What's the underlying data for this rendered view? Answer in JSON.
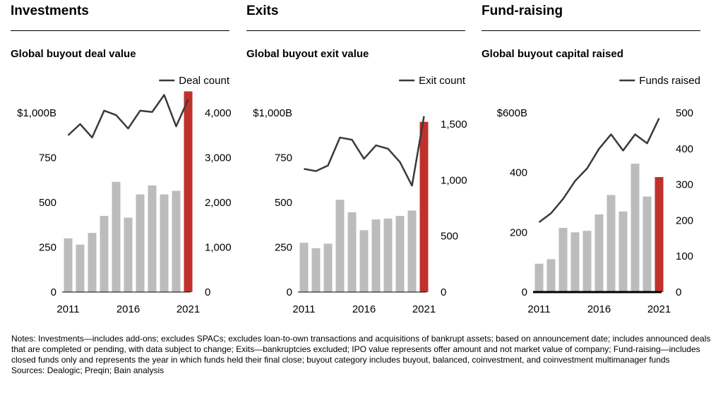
{
  "sections": [
    {
      "heading": "Investments",
      "subtitle": "Global buyout deal value",
      "legend": "Deal count"
    },
    {
      "heading": "Exits",
      "subtitle": "Global buyout exit value",
      "legend": "Exit count"
    },
    {
      "heading": "Fund-raising",
      "subtitle": "Global buyout capital raised",
      "legend": "Funds raised"
    }
  ],
  "colors": {
    "bar": "#bcbcbc",
    "highlight_bar": "#c0312b",
    "line": "#3a3a3a",
    "rule": "#000000"
  },
  "chart_data": [
    {
      "type": "bar",
      "title": "Global buyout deal value",
      "x": [
        2011,
        2012,
        2013,
        2014,
        2015,
        2016,
        2017,
        2018,
        2019,
        2020,
        2021
      ],
      "x_tick_labels": [
        "2011",
        "2016",
        "2021"
      ],
      "series": [
        {
          "type": "bar",
          "axis": "left",
          "values": [
            300,
            265,
            330,
            425,
            615,
            415,
            545,
            595,
            545,
            565,
            1120
          ],
          "highlight_last": true
        },
        {
          "type": "line",
          "axis": "right",
          "name": "Deal count",
          "values": [
            3500,
            3750,
            3450,
            4050,
            3950,
            3650,
            4050,
            4020,
            4400,
            3700,
            4300
          ]
        }
      ],
      "y_left": {
        "ylim": [
          0,
          1000
        ],
        "ticks": [
          0,
          250,
          500,
          750,
          1000
        ],
        "tick_labels": [
          "0",
          "250",
          "500",
          "750",
          "$1,000B"
        ]
      },
      "y_right": {
        "ylim": [
          0,
          4000
        ],
        "ticks": [
          0,
          1000,
          2000,
          3000,
          4000
        ],
        "tick_labels": [
          "0",
          "1,000",
          "2,000",
          "3,000",
          "4,000"
        ]
      },
      "legend_position": "top-right",
      "grid": false
    },
    {
      "type": "bar",
      "title": "Global buyout exit value",
      "x": [
        2011,
        2012,
        2013,
        2014,
        2015,
        2016,
        2017,
        2018,
        2019,
        2020,
        2021
      ],
      "x_tick_labels": [
        "2011",
        "2016",
        "2021"
      ],
      "series": [
        {
          "type": "bar",
          "axis": "left",
          "values": [
            275,
            245,
            270,
            515,
            445,
            345,
            405,
            410,
            425,
            455,
            950
          ],
          "highlight_last": true
        },
        {
          "type": "line",
          "axis": "right",
          "name": "Exit count",
          "values": [
            1100,
            1080,
            1130,
            1380,
            1360,
            1190,
            1310,
            1280,
            1160,
            950,
            1570
          ]
        }
      ],
      "y_left": {
        "ylim": [
          0,
          1000
        ],
        "ticks": [
          0,
          250,
          500,
          750,
          1000
        ],
        "tick_labels": [
          "0",
          "250",
          "500",
          "750",
          "$1,000B"
        ]
      },
      "y_right": {
        "ylim": [
          0,
          1600
        ],
        "ticks": [
          0,
          500,
          1000,
          1500
        ],
        "tick_labels": [
          "0",
          "500",
          "1,000",
          "1,500"
        ]
      },
      "legend_position": "top-right",
      "grid": false
    },
    {
      "type": "bar",
      "title": "Global buyout capital raised",
      "x": [
        2011,
        2012,
        2013,
        2014,
        2015,
        2016,
        2017,
        2018,
        2019,
        2020,
        2021
      ],
      "x_tick_labels": [
        "2011",
        "2016",
        "2021"
      ],
      "series": [
        {
          "type": "bar",
          "axis": "left",
          "values": [
            95,
            110,
            215,
            200,
            205,
            260,
            325,
            270,
            430,
            320,
            385
          ],
          "highlight_last": true
        },
        {
          "type": "line",
          "axis": "right",
          "name": "Funds raised",
          "values": [
            195,
            220,
            260,
            310,
            345,
            400,
            440,
            395,
            440,
            415,
            485
          ]
        }
      ],
      "y_left": {
        "ylim": [
          0,
          600
        ],
        "ticks": [
          0,
          200,
          400,
          600
        ],
        "tick_labels": [
          "0",
          "200",
          "400",
          "$600B"
        ]
      },
      "y_right": {
        "ylim": [
          0,
          500
        ],
        "ticks": [
          0,
          100,
          200,
          300,
          400,
          500
        ],
        "tick_labels": [
          "0",
          "100",
          "200",
          "300",
          "400",
          "500"
        ]
      },
      "legend_position": "top-right",
      "grid": false
    }
  ],
  "notes": {
    "text": "Notes: Investments—includes add-ons; excludes SPACs; excludes loan-to-own transactions and acquisitions of bankrupt assets; based on announcement date; includes announced deals that are completed or pending, with data subject to change; Exits—bankruptcies excluded; IPO value represents offer amount and not market value of company; Fund-raising—includes closed funds only and represents the year in which funds held their final close; buyout category includes buyout, balanced, coinvestment, and coinvestment multimanager funds",
    "sources": "Sources: Dealogic; Preqin; Bain analysis"
  }
}
